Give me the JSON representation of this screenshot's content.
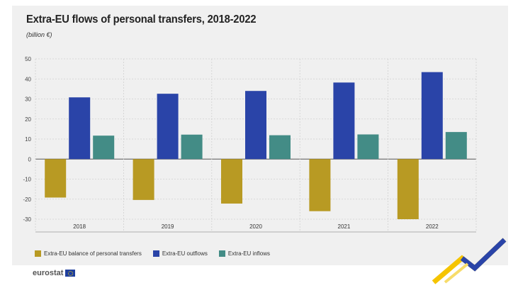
{
  "header": {
    "title": "Extra-EU flows of personal transfers, 2018-2022",
    "unit": "(billion €)"
  },
  "branding": {
    "logo_text": "eurostat"
  },
  "colors": {
    "balance": "#b89a23",
    "outflows": "#2a44a8",
    "inflows": "#438c86"
  },
  "chart_data": {
    "type": "bar",
    "categories": [
      "2018",
      "2019",
      "2020",
      "2021",
      "2022"
    ],
    "series": [
      {
        "name": "Extra-EU balance of personal transfers",
        "values": [
          -19.2,
          -20.4,
          -22.2,
          -26.0,
          -30.0
        ]
      },
      {
        "name": "Extra-EU outflows",
        "values": [
          30.8,
          32.6,
          34.0,
          38.2,
          43.4
        ]
      },
      {
        "name": "Extra-EU inflows",
        "values": [
          11.7,
          12.2,
          11.9,
          12.3,
          13.5
        ]
      }
    ],
    "ylim": [
      -30,
      50
    ],
    "yticks": [
      50,
      40,
      30,
      20,
      10,
      0,
      -10,
      -20,
      -30
    ],
    "grid": true,
    "legend_position": "bottom-left"
  }
}
